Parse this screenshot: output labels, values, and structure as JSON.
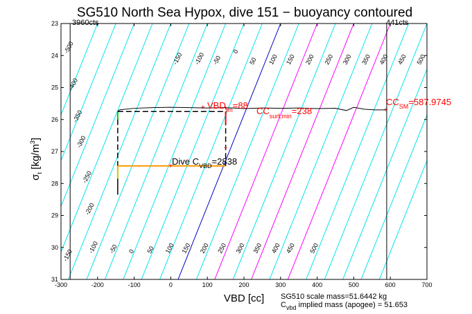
{
  "chart_data": {
    "type": "line",
    "title": "SG510 North Sea Hypox, dive 151 − buoyancy contoured",
    "xlabel": "VBD [cc]",
    "ylabel_main": "σ",
    "ylabel_sub": "t",
    "ylabel_rest": " [kg/m",
    "ylabel_sup": "3",
    "ylabel_close": "]",
    "xlim": [
      -300,
      700
    ],
    "ylim": [
      23,
      31
    ],
    "y_reversed": true,
    "x_ticks": [
      -300,
      -200,
      -100,
      0,
      100,
      200,
      300,
      400,
      500,
      600,
      700
    ],
    "y_ticks": [
      23,
      24,
      25,
      26,
      27,
      28,
      29,
      30,
      31
    ],
    "vbd_min_label": "3960cts",
    "vbd_max_label": "441cts",
    "vbd_min_cc": -275,
    "vbd_max_cc": 590,
    "contour_slope_cc_per_kg_m3": 32,
    "contours": [
      {
        "level": -500,
        "color": "#00e5ee"
      },
      {
        "level": -450,
        "color": "#00e5ee"
      },
      {
        "level": -400,
        "color": "#00e5ee"
      },
      {
        "level": -350,
        "color": "#00e5ee"
      },
      {
        "level": -300,
        "color": "#00e5ee"
      },
      {
        "level": -250,
        "color": "#00e5ee"
      },
      {
        "level": -200,
        "color": "#00e5ee"
      },
      {
        "level": -150,
        "color": "#00e5ee"
      },
      {
        "level": -100,
        "color": "#00e5ee"
      },
      {
        "level": -50,
        "color": "#00e5ee"
      },
      {
        "level": 0,
        "color": "#0000cc"
      },
      {
        "level": 50,
        "color": "#00e5ee"
      },
      {
        "level": 100,
        "color": "#ff00ff"
      },
      {
        "level": 150,
        "color": "#00e5ee"
      },
      {
        "level": 200,
        "color": "#ff00ff"
      },
      {
        "level": 250,
        "color": "#00e5ee"
      },
      {
        "level": 300,
        "color": "#ff00ff"
      },
      {
        "level": 350,
        "color": "#00e5ee"
      },
      {
        "level": 400,
        "color": "#00e5ee"
      },
      {
        "level": 450,
        "color": "#00e5ee"
      },
      {
        "level": 500,
        "color": "#00e5ee"
      },
      {
        "level": 550,
        "color": "#00e5ee"
      }
    ],
    "contour_labels": [
      {
        "text": "-500",
        "x": -282,
        "y": 23.95
      },
      {
        "text": "-400",
        "x": -270,
        "y": 25.1
      },
      {
        "text": "-350",
        "x": -258,
        "y": 26.1
      },
      {
        "text": "-300",
        "x": -248,
        "y": 26.9
      },
      {
        "text": "-250",
        "x": -232,
        "y": 28.0
      },
      {
        "text": "-200",
        "x": -225,
        "y": 29.0
      },
      {
        "text": "-150",
        "x": -285,
        "y": 30.45
      },
      {
        "text": "-100",
        "x": -215,
        "y": 30.2
      },
      {
        "text": "-50",
        "x": -158,
        "y": 30.2
      },
      {
        "text": "0",
        "x": -105,
        "y": 30.2
      },
      {
        "text": "50",
        "x": -55,
        "y": 30.2
      },
      {
        "text": "100",
        "x": -5,
        "y": 30.2
      },
      {
        "text": "150",
        "x": 40,
        "y": 30.2
      },
      {
        "text": "200",
        "x": 90,
        "y": 30.2
      },
      {
        "text": "250",
        "x": 138,
        "y": 30.2
      },
      {
        "text": "300",
        "x": 188,
        "y": 30.2
      },
      {
        "text": "350",
        "x": 235,
        "y": 30.2
      },
      {
        "text": "400",
        "x": 285,
        "y": 30.2
      },
      {
        "text": "450",
        "x": 325,
        "y": 30.2
      },
      {
        "text": "500",
        "x": 390,
        "y": 30.2
      },
      {
        "text": "-150",
        "x": 15,
        "y": 24.3
      },
      {
        "text": "-100",
        "x": 75,
        "y": 24.3
      },
      {
        "text": "-50",
        "x": 125,
        "y": 24.3
      },
      {
        "text": "0",
        "x": 180,
        "y": 23.95
      },
      {
        "text": "50",
        "x": 225,
        "y": 24.3
      },
      {
        "text": "100",
        "x": 278,
        "y": 24.3
      },
      {
        "text": "150",
        "x": 325,
        "y": 24.3
      },
      {
        "text": "200",
        "x": 378,
        "y": 24.3
      },
      {
        "text": "250",
        "x": 430,
        "y": 24.3
      },
      {
        "text": "300",
        "x": 480,
        "y": 24.3
      },
      {
        "text": "350",
        "x": 532,
        "y": 24.3
      },
      {
        "text": "400",
        "x": 580,
        "y": 24.3
      },
      {
        "text": "450",
        "x": 630,
        "y": 24.3
      },
      {
        "text": "500",
        "x": 682,
        "y": 24.3
      }
    ],
    "profile": {
      "color": "#000000",
      "x": [
        -145,
        -140,
        -100,
        -50,
        0,
        50,
        100,
        150,
        200,
        250,
        300,
        350,
        400,
        450,
        480,
        500,
        530,
        560,
        587
      ],
      "y": [
        25.75,
        25.7,
        25.65,
        25.63,
        25.62,
        25.63,
        25.64,
        25.63,
        25.66,
        25.64,
        25.65,
        25.64,
        25.66,
        25.65,
        25.72,
        25.62,
        25.68,
        25.7,
        25.7
      ]
    },
    "dive_box": {
      "left_x": -145,
      "right_x": 150,
      "top_y": 25.75,
      "bottom_y": 27.45
    },
    "annotations": {
      "vbd_main": "VBD",
      "vbd_sub": "fm",
      "vbd_rest": "=88",
      "vbd_x": 88,
      "vbd_y": 25.63,
      "cc_surf_main": "CC",
      "cc_surf_sub": "surf,min",
      "cc_surf_rest": "=238",
      "cc_surf_x": 150,
      "cc_surf_y": 25.65,
      "cc_sm_main": "CC",
      "cc_sm_sub": "SM",
      "cc_sm_rest": "=587.9745",
      "cc_sm_x": 587.97,
      "cc_sm_y": 25.7,
      "dive_main": "Dive C",
      "dive_sub": "VBD",
      "dive_rest": "=2838",
      "dive_x": 0,
      "dive_y": 27.45
    },
    "bottom_notes": {
      "line1": "SG510 scale mass=51.6442 kg",
      "line2_main": "C",
      "line2_sub": "vbd",
      "line2_rest": " implied mass (apogee) = 51.653"
    }
  }
}
